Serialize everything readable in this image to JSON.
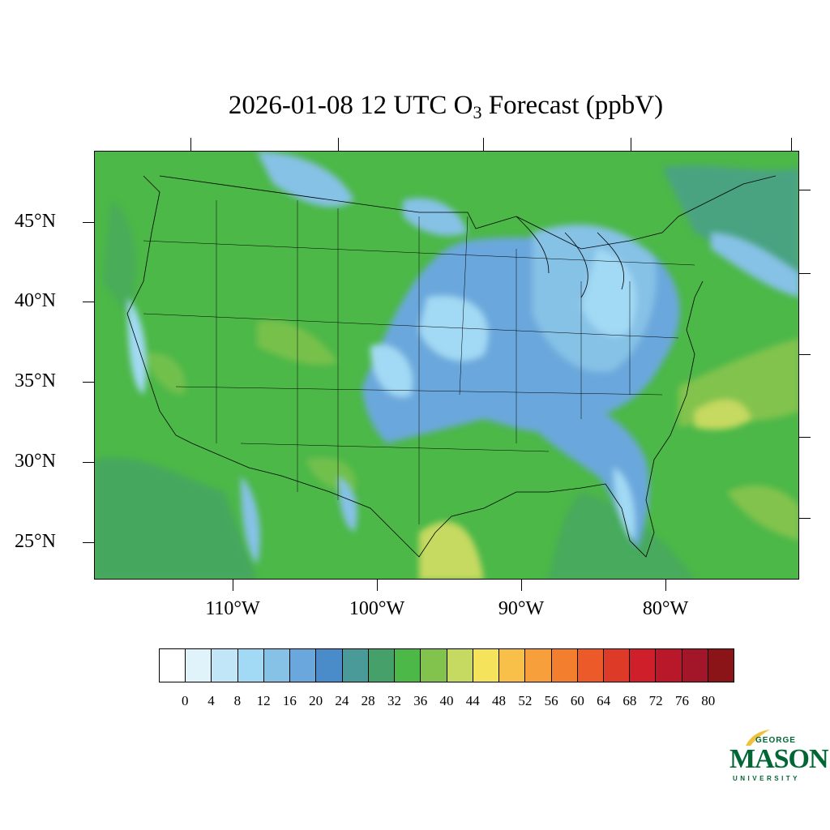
{
  "title": {
    "prefix": "2026-01-08 12 UTC O",
    "subscript": "3",
    "suffix": " Forecast (ppbV)"
  },
  "axes": {
    "lat_labels": [
      "45°N",
      "40°N",
      "35°N",
      "30°N",
      "25°N"
    ],
    "lon_labels": [
      "110°W",
      "100°W",
      "90°W",
      "80°W"
    ]
  },
  "colorbar": {
    "colors": [
      "#ffffff",
      "#e0f3fb",
      "#c1e6f7",
      "#a2d9f4",
      "#86c1e6",
      "#6aa7dc",
      "#4a8cc9",
      "#4a9a9a",
      "#45a06a",
      "#4cb848",
      "#82c34e",
      "#c6d960",
      "#f5e45b",
      "#f8c048",
      "#f7a03b",
      "#f37e2e",
      "#ec5a2a",
      "#de3a28",
      "#cf1f2a",
      "#b8182a",
      "#a3162a",
      "#8b1418"
    ],
    "labels": [
      "0",
      "4",
      "8",
      "12",
      "16",
      "20",
      "24",
      "28",
      "32",
      "36",
      "40",
      "44",
      "48",
      "52",
      "56",
      "60",
      "64",
      "68",
      "72",
      "76",
      "80"
    ]
  },
  "logo": {
    "line1": "GEORGE",
    "line2": "MASON",
    "line3": "UNIVERSITY",
    "color": "#006633",
    "accent": "#f2c13a"
  }
}
